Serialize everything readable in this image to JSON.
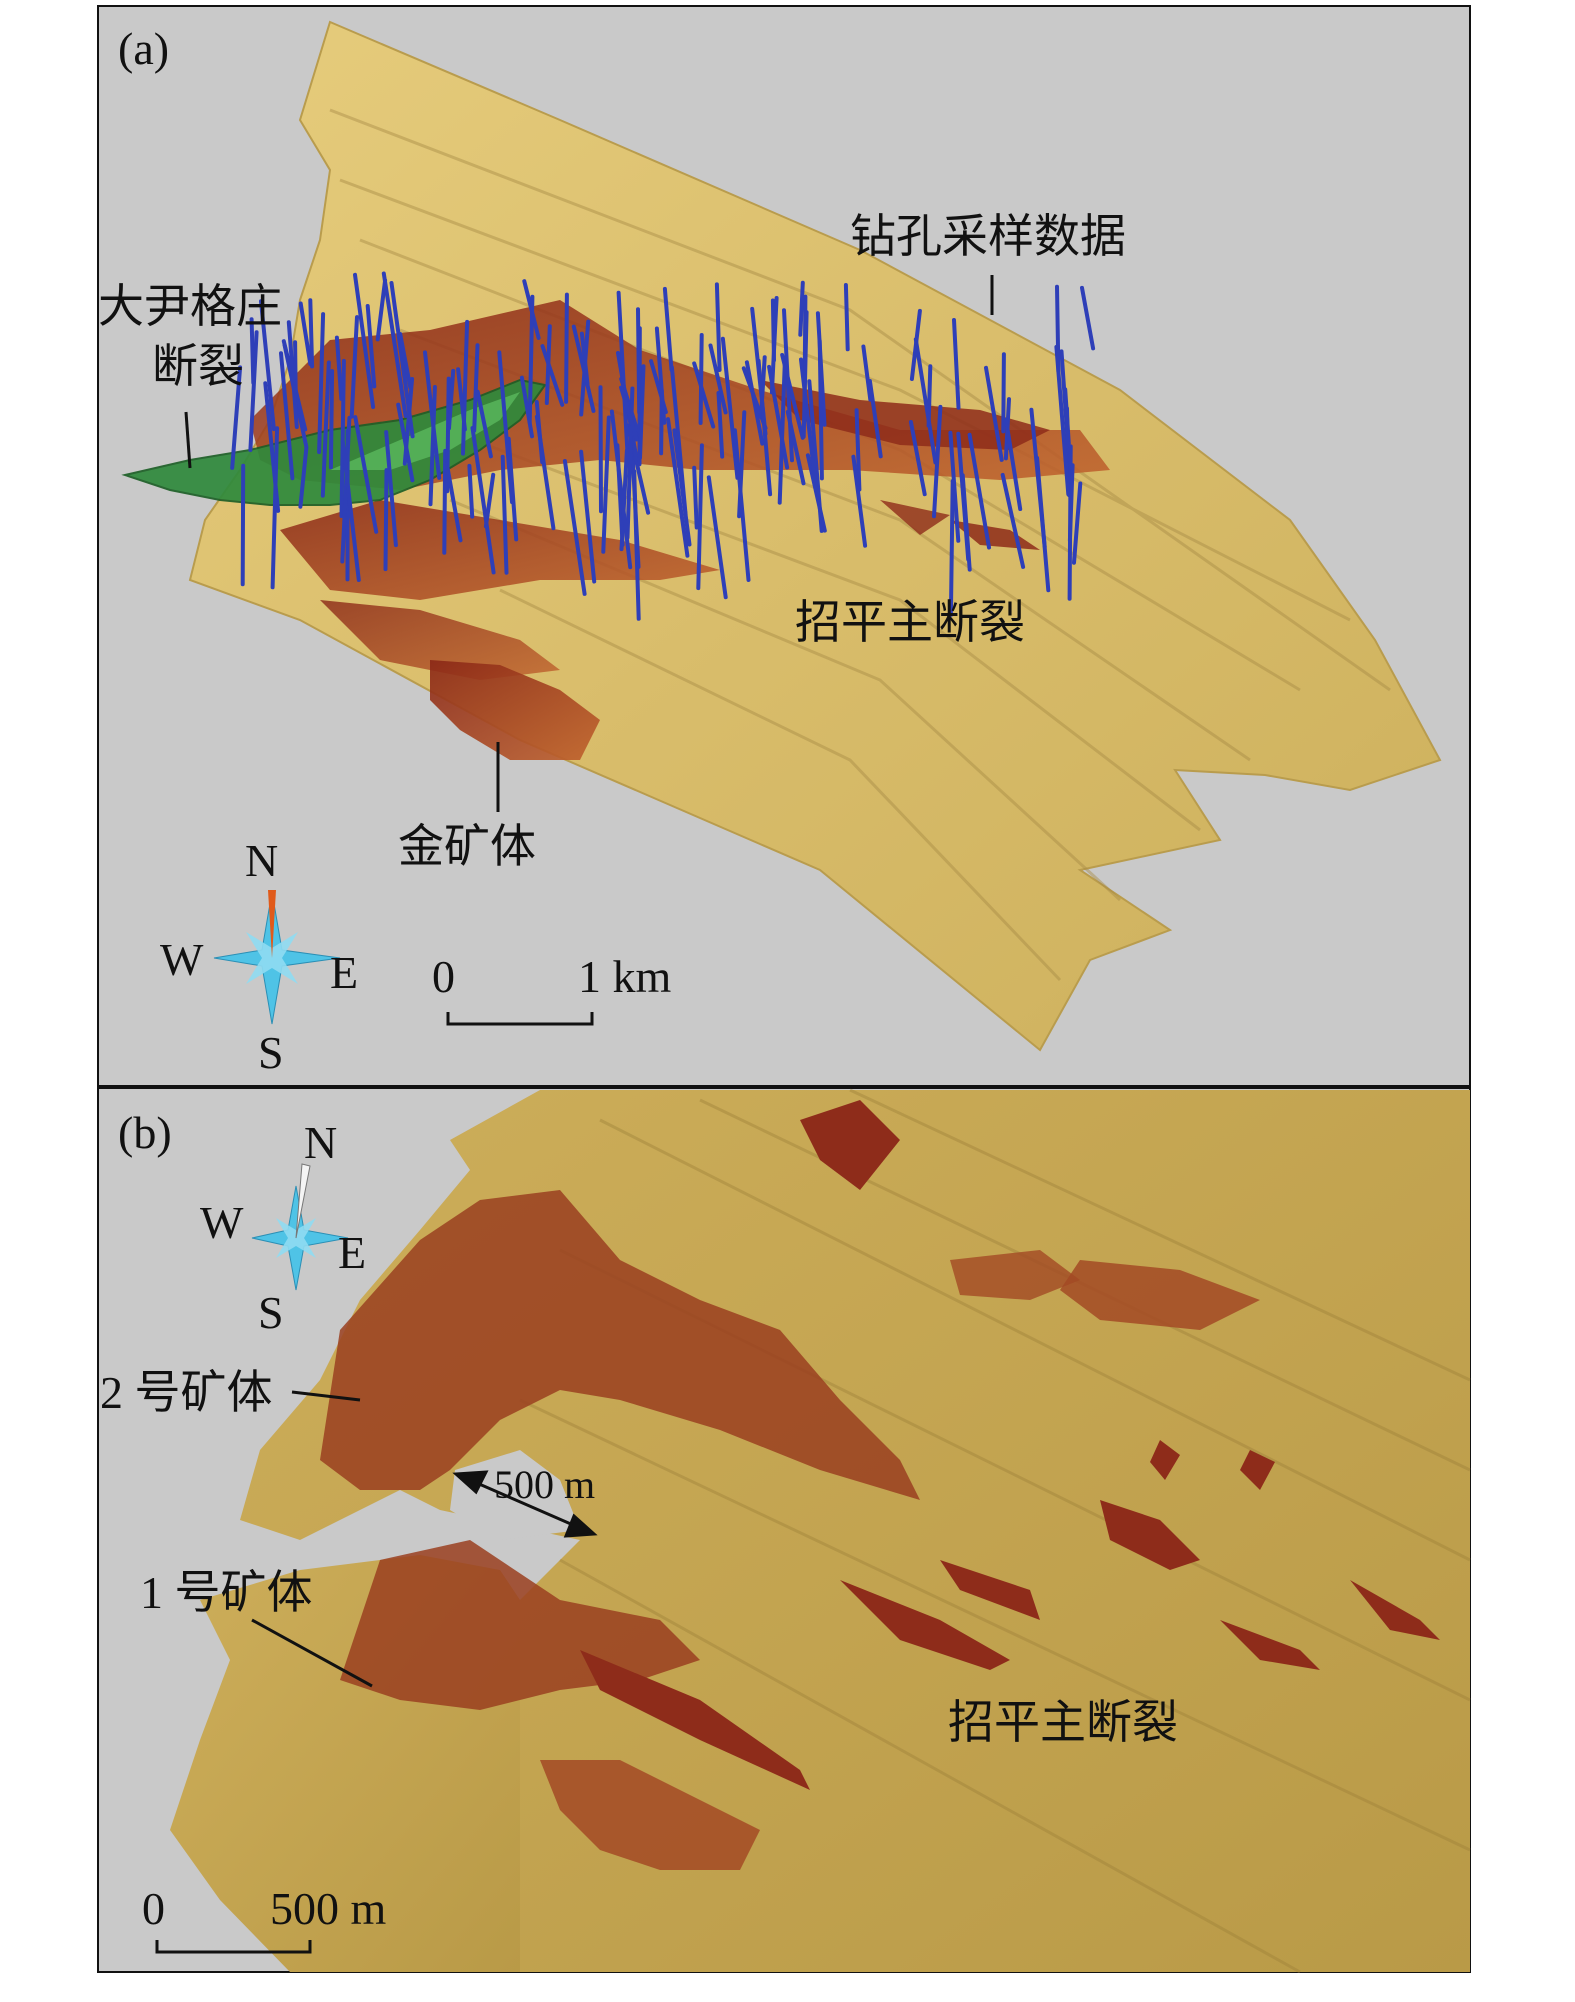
{
  "panels": [
    {
      "tag": "(a)",
      "labels": {
        "drill_data": "钻孔采样数据",
        "dayin_fault_line1": "大尹格庄",
        "dayin_fault_line2": "断裂",
        "main_fault": "招平主断裂",
        "gold_orebody": "金矿体"
      },
      "compass": {
        "n": "N",
        "s": "S",
        "e": "E",
        "w": "W"
      },
      "scale": {
        "start": "0",
        "end": "1 km"
      }
    },
    {
      "tag": "(b)",
      "labels": {
        "orebody_2": "2 号矿体",
        "orebody_1": "1 号矿体",
        "main_fault": "招平主断裂",
        "gap": "500 m"
      },
      "compass": {
        "n": "N",
        "s": "S",
        "e": "E",
        "w": "W"
      },
      "scale": {
        "start": "0",
        "end": "500 m"
      }
    }
  ],
  "colors": {
    "background": "#c9c9c9",
    "fault_surface": "#d8bb6a",
    "fault_surface_b": "#c7a752",
    "orebody": "#8e2c1a",
    "orebody_light": "#b5562b",
    "drillhole": "#2e3fb8",
    "dayin_fault": "#2f8a3c",
    "compass_cyan": "#4fc3e6",
    "compass_red": "#e05a1a"
  }
}
